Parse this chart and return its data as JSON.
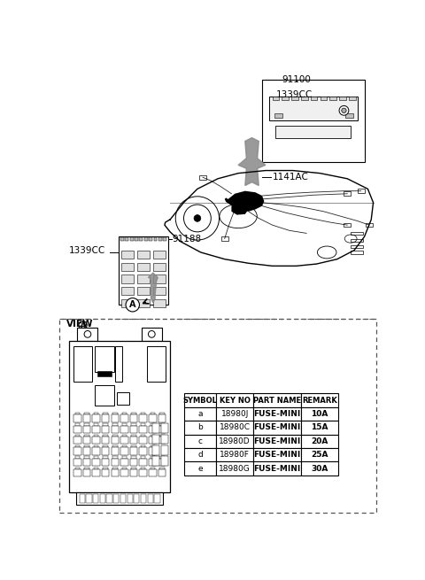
{
  "bg_color": "#ffffff",
  "label_91100": "91100",
  "label_1339CC_top": "1339CC",
  "label_1141AC": "1141AC",
  "label_91188": "91188",
  "label_1339CC_bot": "1339CC",
  "label_viewA": "VIEW",
  "table_headers": [
    "SYMBOL",
    "KEY NO",
    "PART NAME",
    "REMARK"
  ],
  "table_rows": [
    [
      "a",
      "18980J",
      "FUSE-MINI",
      "10A"
    ],
    [
      "b",
      "18980C",
      "FUSE-MINI",
      "15A"
    ],
    [
      "c",
      "18980D",
      "FUSE-MINI",
      "20A"
    ],
    [
      "d",
      "18980F",
      "FUSE-MINI",
      "25A"
    ],
    [
      "e",
      "18980G",
      "FUSE-MINI",
      "30A"
    ]
  ]
}
